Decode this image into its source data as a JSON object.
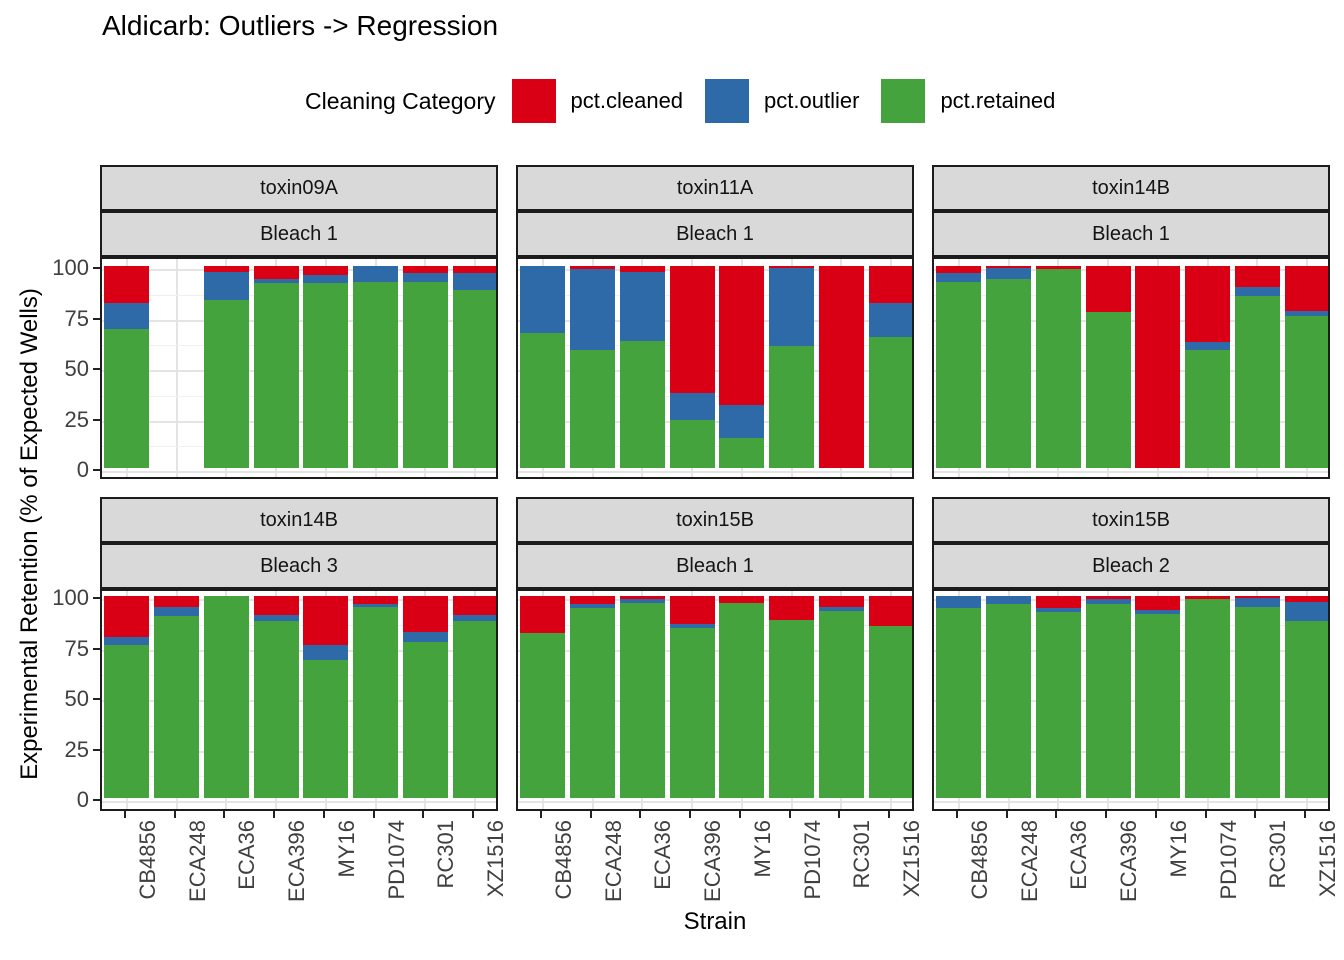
{
  "title": "Aldicarb: Outliers -> Regression",
  "legend": {
    "title": "Cleaning Category",
    "entries": [
      {
        "label": "pct.cleaned",
        "color": "#d90016"
      },
      {
        "label": "pct.outlier",
        "color": "#2e6aa8"
      },
      {
        "label": "pct.retained",
        "color": "#44a33c"
      }
    ]
  },
  "axes": {
    "x_title": "Strain",
    "y_title": "Experimental Retention (% of Expected Wells)",
    "y_tick_labels": [
      "100",
      "75",
      "50",
      "25",
      "0"
    ],
    "y_tick_values": [
      100,
      75,
      50,
      25,
      0
    ]
  },
  "chart_data": {
    "type": "bar",
    "stacked": true,
    "ylim": [
      0,
      100
    ],
    "grid": "major+minor",
    "legend_position": "top",
    "categories": [
      "CB4856",
      "ECA248",
      "ECA36",
      "ECA396",
      "MY16",
      "PD1074",
      "RC301",
      "XZ1516"
    ],
    "stack_order_bottom_to_top": [
      "pct.retained",
      "pct.outlier",
      "pct.cleaned"
    ],
    "facets": [
      {
        "row": 0,
        "col": 0,
        "toxin": "toxin09A",
        "bleach": "Bleach 1",
        "series": {
          "pct.retained": [
            69,
            null,
            83,
            91.5,
            91.5,
            92,
            92,
            88
          ],
          "pct.outlier": [
            12.5,
            null,
            14,
            2,
            4,
            8,
            4.5,
            8.5
          ],
          "pct.cleaned": [
            18.5,
            null,
            3,
            6.5,
            4.5,
            0,
            3.5,
            3.5
          ]
        }
      },
      {
        "row": 0,
        "col": 1,
        "toxin": "toxin11A",
        "bleach": "Bleach 1",
        "series": {
          "pct.retained": [
            67,
            58.5,
            63,
            24,
            15,
            60.5,
            0,
            65
          ],
          "pct.outlier": [
            33,
            40,
            34,
            13,
            16,
            38.5,
            0,
            16.5
          ],
          "pct.cleaned": [
            0,
            1.5,
            3,
            63,
            69,
            1,
            100,
            18.5
          ]
        }
      },
      {
        "row": 0,
        "col": 2,
        "toxin": "toxin14B",
        "bleach": "Bleach 1",
        "series": {
          "pct.retained": [
            92,
            93.5,
            98.5,
            77,
            0,
            58.5,
            85,
            75
          ],
          "pct.outlier": [
            4.5,
            5.5,
            0,
            0,
            0,
            4,
            4.5,
            2.5
          ],
          "pct.cleaned": [
            3.5,
            1,
            1.5,
            23,
            100,
            37.5,
            10.5,
            22.5
          ]
        }
      },
      {
        "row": 1,
        "col": 0,
        "toxin": "toxin14B",
        "bleach": "Bleach 3",
        "series": {
          "pct.retained": [
            75.5,
            90,
            100,
            87.5,
            68.5,
            94.5,
            77,
            87.5
          ],
          "pct.outlier": [
            4,
            4.5,
            0,
            3,
            7,
            1.5,
            5,
            3
          ],
          "pct.cleaned": [
            20.5,
            5.5,
            0,
            9.5,
            24.5,
            4,
            18,
            9.5
          ]
        }
      },
      {
        "row": 1,
        "col": 1,
        "toxin": "toxin15B",
        "bleach": "Bleach 1",
        "series": {
          "pct.retained": [
            81.5,
            94,
            96.5,
            84,
            96.5,
            88,
            92.5,
            85
          ],
          "pct.outlier": [
            0,
            2,
            2,
            2,
            0,
            0,
            2,
            0
          ],
          "pct.cleaned": [
            18.5,
            4,
            1.5,
            14,
            3.5,
            12,
            5.5,
            15
          ]
        }
      },
      {
        "row": 1,
        "col": 2,
        "toxin": "toxin15B",
        "bleach": "Bleach 2",
        "series": {
          "pct.retained": [
            94,
            96,
            92,
            96,
            91,
            98.5,
            94.5,
            87.5
          ],
          "pct.outlier": [
            6,
            4,
            2,
            2.5,
            2,
            0,
            4.5,
            9.5
          ],
          "pct.cleaned": [
            0,
            0,
            6,
            1.5,
            7,
            1.5,
            1,
            3
          ]
        }
      }
    ]
  }
}
